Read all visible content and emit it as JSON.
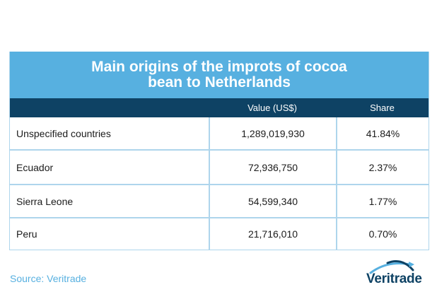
{
  "chart_data": {
    "type": "table",
    "title": "Main origins of the improts of cocoa bean to Netherlands",
    "columns": [
      "",
      "Value (US$)",
      "Share"
    ],
    "rows": [
      {
        "origin": "Unspecified countries",
        "value": "1,289,019,930",
        "share": "41.84%"
      },
      {
        "origin": "Ecuador",
        "value": "72,936,750",
        "share": "2.37%"
      },
      {
        "origin": "Sierra Leone",
        "value": "54,599,340",
        "share": "1.77%"
      },
      {
        "origin": "Peru",
        "value": "21,716,010",
        "share": "0.70%"
      }
    ]
  },
  "source": "Source: Veritrade",
  "logo": {
    "text": "Veritrade"
  },
  "colors": {
    "title_band": "#57b0e0",
    "header": "#0e4264",
    "grid": "#aed5ec",
    "source": "#57b0e0"
  }
}
